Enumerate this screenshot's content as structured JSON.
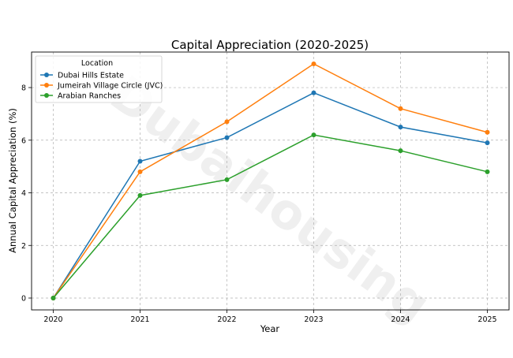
{
  "chart_data": {
    "type": "line",
    "title": "Capital Appreciation (2020-2025)",
    "xlabel": "Year",
    "ylabel": "Annual Capital Appreciation (%)",
    "x": [
      2020,
      2021,
      2022,
      2023,
      2024,
      2025
    ],
    "x_ticks": [
      "2020",
      "2021",
      "2022",
      "2023",
      "2024",
      "2025"
    ],
    "y_ticks": [
      "0",
      "2",
      "4",
      "6",
      "8"
    ],
    "ylim": [
      -0.45,
      9.35
    ],
    "grid": true,
    "legend": {
      "title": "Location",
      "placement": "top-left"
    },
    "series": [
      {
        "name": "Dubai Hills Estate",
        "color": "#1f77b4",
        "values": [
          0,
          5.2,
          6.1,
          7.8,
          6.5,
          5.9
        ]
      },
      {
        "name": "Jumeirah Village Circle (JVC)",
        "color": "#ff7f0e",
        "values": [
          0,
          4.8,
          6.7,
          8.9,
          7.2,
          6.3
        ]
      },
      {
        "name": "Arabian Ranches",
        "color": "#2ca02c",
        "values": [
          0,
          3.9,
          4.5,
          6.2,
          5.6,
          4.8
        ]
      }
    ]
  },
  "watermark": {
    "text": "Dubaihousing"
  }
}
